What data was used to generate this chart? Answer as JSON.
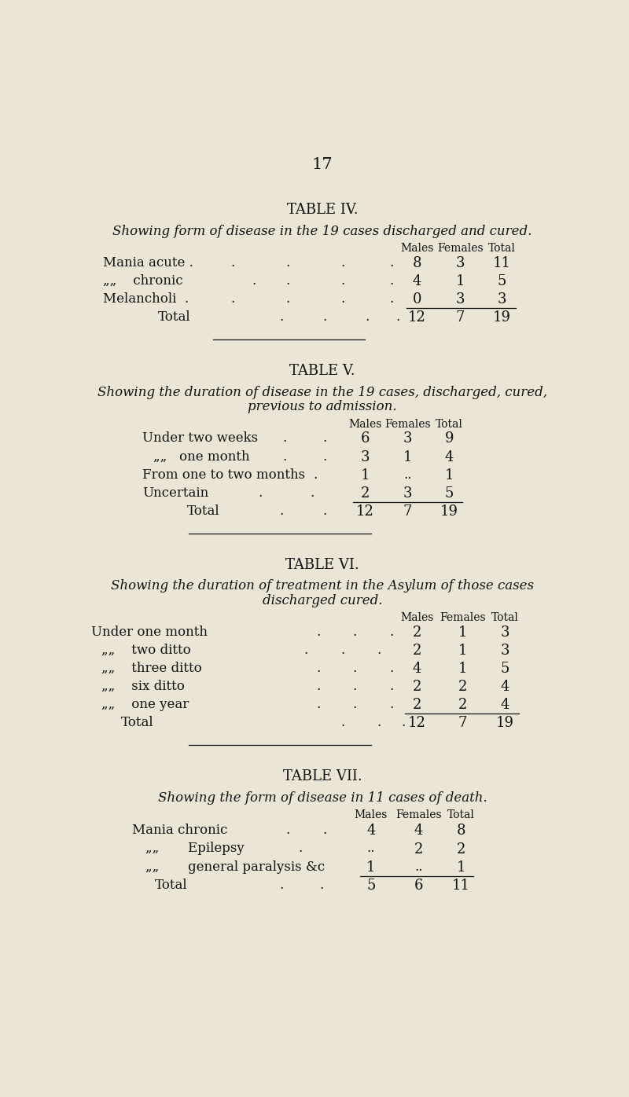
{
  "page_number": "17",
  "bg_color": "#EAE5D5",
  "text_color": "#1a1a1a",
  "table4": {
    "title": "TABLE IV.",
    "subtitle": "Showing form of disease in the 19 cases discharged and cured.",
    "rows": [
      [
        "Mania acute .",
        "8",
        "3",
        "11"
      ],
      [
        "„    chronic",
        "4",
        "1",
        "5"
      ],
      [
        "Melancholi  .",
        "0",
        "3",
        "3"
      ],
      [
        "Total",
        "12",
        "7",
        "19"
      ]
    ],
    "total_row_idx": 3
  },
  "table5": {
    "title": "TABLE V.",
    "subtitle_line1": "Showing the duration of disease in the 19 cases, discharged, cured,",
    "subtitle_line2": "previous to admission.",
    "rows": [
      [
        "Under two weeks",
        "6",
        "3",
        "9"
      ],
      [
        "„„   one month",
        "3",
        "1",
        "4"
      ],
      [
        "From one to two months",
        "1",
        "..",
        "1"
      ],
      [
        "Uncertain",
        "2",
        "3",
        "5"
      ],
      [
        "Total",
        "12",
        "7",
        "19"
      ]
    ],
    "total_row_idx": 4
  },
  "table6": {
    "title": "TABLE VI.",
    "subtitle_line1": "Showing the duration of treatment in the Asylum of those cases",
    "subtitle_line2": "discharged cured.",
    "rows": [
      [
        "Under one month",
        "2",
        "1",
        "3"
      ],
      [
        "„„    two ditto",
        "2",
        "1",
        "3"
      ],
      [
        "„„    three ditto",
        "4",
        "1",
        "5"
      ],
      [
        "„„    six ditto",
        "2",
        "2",
        "4"
      ],
      [
        "„„    one year",
        "2",
        "2",
        "4"
      ],
      [
        "Total",
        "12",
        "7",
        "19"
      ]
    ],
    "total_row_idx": 5
  },
  "table7": {
    "title": "TABLE VII.",
    "subtitle": "Showing the form of disease in 11 cases of death.",
    "rows": [
      [
        "Mania chronic",
        "4",
        "4",
        "8"
      ],
      [
        "„„       Epilepsy",
        "..",
        "2",
        "2"
      ],
      [
        "„„       general paralysis &c",
        "1",
        "..",
        "1"
      ],
      [
        "Total",
        "5",
        "6",
        "11"
      ]
    ],
    "total_row_idx": 3
  }
}
